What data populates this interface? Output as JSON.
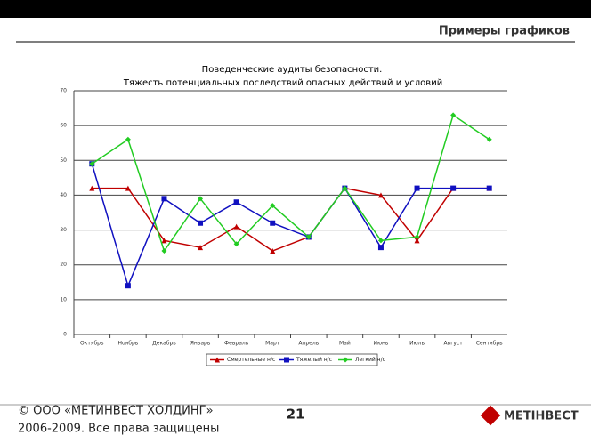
{
  "header": {
    "title": "Примеры графиков"
  },
  "footer": {
    "copyright_line1": "© ООО «МЕТИНВЕСТ ХОЛДИНГ»",
    "copyright_line2": "2006-2009. Все права защищены",
    "page_number": "21",
    "logo": "МЕТІНВЕСТ"
  },
  "chart_data": {
    "type": "line",
    "title": "Поведенческие аудиты безопасности.",
    "subtitle": "Тяжесть потенциальных последствий опасных действий и условий",
    "categories": [
      "Октябрь",
      "Ноябрь",
      "Декабрь",
      "Январь",
      "Февраль",
      "Март",
      "Апрель",
      "Май",
      "Июнь",
      "Июль",
      "Август",
      "Сентябрь"
    ],
    "series": [
      {
        "name": "Смертельные н/с",
        "color": "#c00000",
        "marker": "triangle",
        "values": [
          42,
          42,
          27,
          25,
          31,
          24,
          28,
          42,
          40,
          27,
          42,
          42
        ]
      },
      {
        "name": "Тяжелый н/с",
        "color": "#1010c0",
        "marker": "square",
        "values": [
          49,
          14,
          39,
          32,
          38,
          32,
          28,
          42,
          25,
          42,
          42,
          42
        ]
      },
      {
        "name": "Легкий н/с",
        "color": "#22cc22",
        "marker": "diamond",
        "values": [
          49,
          56,
          24,
          39,
          26,
          37,
          28,
          42,
          27,
          28,
          63,
          56
        ]
      }
    ],
    "ylim": [
      0,
      70
    ],
    "yticks": [
      0,
      10,
      20,
      30,
      40,
      50,
      60,
      70
    ],
    "grid": true,
    "legend": "bottom"
  }
}
